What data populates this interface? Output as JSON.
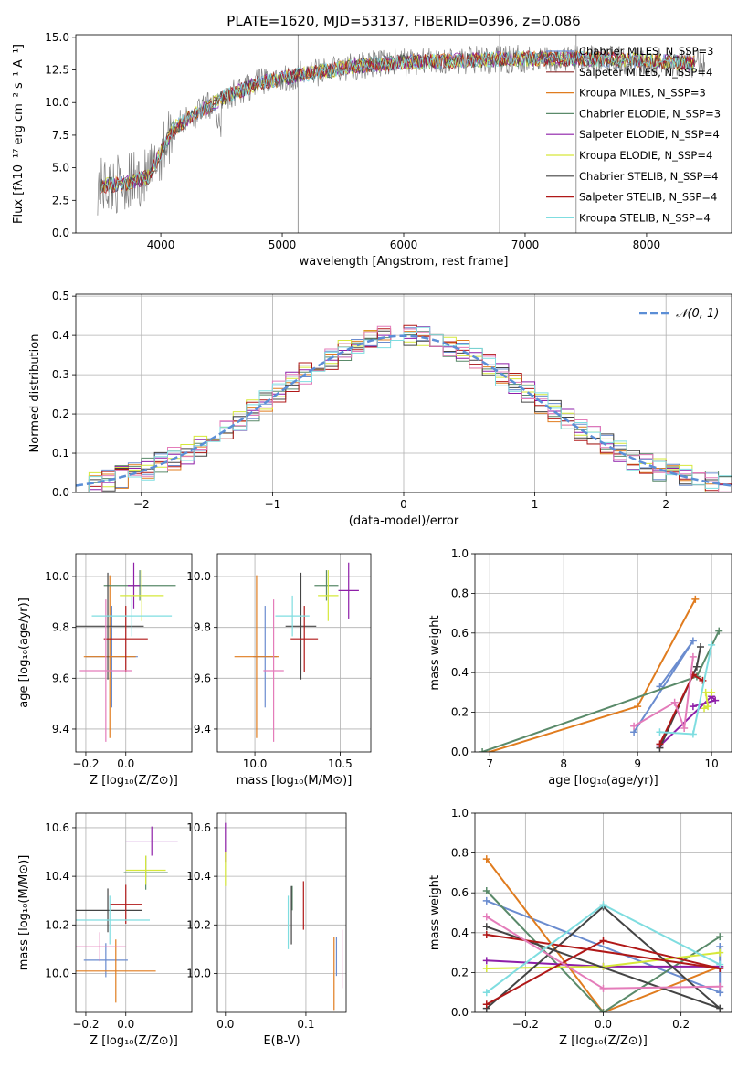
{
  "chart_data": [
    {
      "type": "line",
      "title": "PLATE=1620, MJD=53137, FIBERID=0396, z=0.086",
      "xlabel": "wavelength [Angstrom, rest frame]",
      "ylabel": "Flux [fλ10⁻¹⁷ erg cm⁻² s⁻¹ A⁻¹]",
      "xlim": [
        3300,
        8700
      ],
      "ylim": [
        0,
        15.2
      ],
      "xticks": [
        4000,
        5000,
        6000,
        7000,
        8000
      ],
      "yticks": [
        0.0,
        2.5,
        5.0,
        7.5,
        10.0,
        12.5,
        15.0
      ],
      "ytick_labels": [
        "0.0",
        "2.5",
        "5.0",
        "7.5",
        "10.0",
        "12.5",
        "15.0"
      ],
      "grid": false,
      "legend_position": "upper-right",
      "series": [
        {
          "name": "Chabrier MILES, N_SSP=3",
          "color": "#6a8ccf"
        },
        {
          "name": "Salpeter MILES, N_SSP=4",
          "color": "#8b2a2a"
        },
        {
          "name": "Kroupa MILES, N_SSP=3",
          "color": "#e07c1f"
        },
        {
          "name": "Chabrier ELODIE, N_SSP=3",
          "color": "#5a8a6a"
        },
        {
          "name": "Salpeter ELODIE, N_SSP=4",
          "color": "#8e1fa8"
        },
        {
          "name": "Kroupa ELODIE, N_SSP=4",
          "color": "#d6e83a"
        },
        {
          "name": "Chabrier STELIB, N_SSP=4",
          "color": "#444444"
        },
        {
          "name": "Salpeter STELIB, N_SSP=4",
          "color": "#b01818"
        },
        {
          "name": "Kroupa STELIB, N_SSP=4",
          "color": "#7fdde0"
        }
      ],
      "observed_color": "#808080",
      "continuum_x": [
        3500,
        3700,
        3900,
        4100,
        4300,
        4500,
        4800,
        5200,
        5600,
        6000,
        6400,
        6800,
        7200,
        7600,
        8000,
        8400
      ],
      "continuum_y": [
        3.6,
        3.8,
        4.3,
        8.0,
        9.2,
        10.3,
        11.5,
        12.2,
        12.8,
        13.1,
        13.2,
        13.3,
        13.4,
        13.3,
        13.2,
        13.0
      ],
      "spikes_x": [
        5130,
        6790,
        7420
      ]
    },
    {
      "type": "histogram",
      "xlabel": "(data-model)/error",
      "ylabel": "Normed distribution",
      "xlim": [
        -2.5,
        2.5
      ],
      "ylim": [
        0,
        0.505
      ],
      "xticks": [
        -2,
        -1,
        0,
        1,
        2
      ],
      "xtick_labels": [
        "−2",
        "−1",
        "0",
        "1",
        "2"
      ],
      "yticks": [
        0.0,
        0.1,
        0.2,
        0.3,
        0.4,
        0.5
      ],
      "ytick_labels": [
        "0.0",
        "0.1",
        "0.2",
        "0.3",
        "0.4",
        "0.5"
      ],
      "grid": true,
      "bin_width": 0.1,
      "reference": {
        "name": "𝒩(0, 1)",
        "color": "#5b8ed6"
      },
      "legend_position": "upper-right"
    },
    {
      "type": "scatter",
      "panel": "age_vs_Z",
      "xlabel": "Z [log₁₀(Z/Z⊙)]",
      "ylabel": "age  [log₁₀(age/yr)]",
      "xlim": [
        -0.25,
        0.33
      ],
      "ylim": [
        9.31,
        10.09
      ],
      "xticks": [
        -0.2,
        0.0
      ],
      "xtick_labels": [
        "−0.2",
        "0.0"
      ],
      "yticks": [
        9.4,
        9.6,
        9.8,
        10.0
      ],
      "ytick_labels": [
        "9.4",
        "9.6",
        "9.8",
        "10.0"
      ],
      "grid": true,
      "points": [
        {
          "x": -0.07,
          "y": 9.685,
          "xerr": 0.13,
          "yerr": 0.2,
          "color": "#6a8ccf"
        },
        {
          "x": -0.08,
          "y": 9.685,
          "xerr": 0.13,
          "yerr": 0.32,
          "color": "#e07c1f"
        },
        {
          "x": 0.07,
          "y": 9.965,
          "xerr": 0.18,
          "yerr": 0.06,
          "color": "#5a8a6a"
        },
        {
          "x": 0.04,
          "y": 9.965,
          "xerr": 0.03,
          "yerr": 0.09,
          "color": "#8e1fa8"
        },
        {
          "x": 0.08,
          "y": 9.925,
          "xerr": 0.11,
          "yerr": 0.1,
          "color": "#d6e83a"
        },
        {
          "x": -0.09,
          "y": 9.805,
          "xerr": 0.18,
          "yerr": 0.21,
          "color": "#444444"
        },
        {
          "x": 0.0,
          "y": 9.755,
          "xerr": 0.11,
          "yerr": 0.13,
          "color": "#b01818"
        },
        {
          "x": -0.1,
          "y": 9.63,
          "xerr": 0.13,
          "yerr": 0.28,
          "color": "#e47cba"
        },
        {
          "x": 0.03,
          "y": 9.845,
          "xerr": 0.2,
          "yerr": 0.08,
          "color": "#7fdde0"
        }
      ]
    },
    {
      "type": "scatter",
      "panel": "age_vs_mass",
      "xlabel": "mass [log₁₀(M/M⊙)]",
      "xlim": [
        9.78,
        10.68
      ],
      "ylim": [
        9.31,
        10.09
      ],
      "xticks": [
        10.0,
        10.5
      ],
      "xtick_labels": [
        "10.0",
        "10.5"
      ],
      "yticks": [
        9.4,
        9.6,
        9.8,
        10.0
      ],
      "ytick_labels": [
        "9.4",
        "9.6",
        "9.8",
        "10.0"
      ],
      "grid": true,
      "points": [
        {
          "x": 10.06,
          "y": 9.685,
          "xerr": 0.07,
          "yerr": 0.2,
          "color": "#6a8ccf"
        },
        {
          "x": 10.01,
          "y": 9.685,
          "xerr": 0.13,
          "yerr": 0.32,
          "color": "#e07c1f"
        },
        {
          "x": 10.42,
          "y": 9.965,
          "xerr": 0.07,
          "yerr": 0.06,
          "color": "#5a8a6a"
        },
        {
          "x": 10.55,
          "y": 9.945,
          "xerr": 0.06,
          "yerr": 0.11,
          "color": "#8e1fa8"
        },
        {
          "x": 10.43,
          "y": 9.925,
          "xerr": 0.06,
          "yerr": 0.1,
          "color": "#d6e83a"
        },
        {
          "x": 10.27,
          "y": 9.805,
          "xerr": 0.09,
          "yerr": 0.21,
          "color": "#444444"
        },
        {
          "x": 10.29,
          "y": 9.755,
          "xerr": 0.08,
          "yerr": 0.13,
          "color": "#b01818"
        },
        {
          "x": 10.11,
          "y": 9.63,
          "xerr": 0.06,
          "yerr": 0.28,
          "color": "#e47cba"
        },
        {
          "x": 10.22,
          "y": 9.845,
          "xerr": 0.1,
          "yerr": 0.08,
          "color": "#7fdde0"
        }
      ]
    },
    {
      "type": "line",
      "panel": "weight_vs_age",
      "xlabel": "age  [log₁₀(age/yr)]",
      "ylabel": "mass weight",
      "xlim": [
        6.8,
        10.27
      ],
      "ylim": [
        0,
        1.0
      ],
      "xticks": [
        7,
        8,
        9,
        10
      ],
      "xtick_labels": [
        "7",
        "8",
        "9",
        "10"
      ],
      "yticks": [
        0.0,
        0.2,
        0.4,
        0.6,
        0.8,
        1.0
      ],
      "ytick_labels": [
        "0.0",
        "0.2",
        "0.4",
        "0.6",
        "0.8",
        "1.0"
      ],
      "grid": true,
      "series": [
        {
          "color": "#6a8ccf",
          "x": [
            8.95,
            9.75,
            9.3
          ],
          "y": [
            0.1,
            0.56,
            0.33
          ]
        },
        {
          "color": "#e07c1f",
          "x": [
            7.0,
            9.0,
            9.78
          ],
          "y": [
            0.0,
            0.23,
            0.77
          ]
        },
        {
          "color": "#5a8a6a",
          "x": [
            6.9,
            9.8,
            10.1
          ],
          "y": [
            0.0,
            0.38,
            0.61
          ]
        },
        {
          "color": "#8e1fa8",
          "x": [
            9.75,
            10.05,
            10.0,
            9.3
          ],
          "y": [
            0.23,
            0.26,
            0.28,
            0.03
          ]
        },
        {
          "color": "#d6e83a",
          "x": [
            9.9,
            9.95,
            9.92,
            10.0
          ],
          "y": [
            0.22,
            0.23,
            0.3,
            0.3
          ]
        },
        {
          "color": "#444444",
          "x": [
            9.3,
            9.8,
            9.85
          ],
          "y": [
            0.02,
            0.43,
            0.53
          ]
        },
        {
          "color": "#b01818",
          "x": [
            9.3,
            9.75,
            9.88
          ],
          "y": [
            0.04,
            0.39,
            0.36
          ]
        },
        {
          "color": "#e47cba",
          "x": [
            8.95,
            9.5,
            9.63,
            9.75
          ],
          "y": [
            0.13,
            0.25,
            0.12,
            0.48
          ]
        },
        {
          "color": "#7fdde0",
          "x": [
            9.3,
            9.75,
            10.0
          ],
          "y": [
            0.1,
            0.09,
            0.54
          ]
        }
      ]
    },
    {
      "type": "scatter",
      "panel": "mass_vs_Z",
      "xlabel": "Z [log₁₀(Z/Z⊙)]",
      "ylabel": "mass [log₁₀(M/M⊙)]",
      "xlim": [
        -0.25,
        0.33
      ],
      "ylim": [
        9.84,
        10.66
      ],
      "xticks": [
        -0.2,
        0.0
      ],
      "xtick_labels": [
        "−0.2",
        "0.0"
      ],
      "yticks": [
        10.0,
        10.2,
        10.4,
        10.6
      ],
      "ytick_labels": [
        "10.0",
        "10.2",
        "10.4",
        "10.6"
      ],
      "grid": true,
      "points": [
        {
          "x": -0.1,
          "y": 10.055,
          "xerr": 0.11,
          "yerr": 0.07,
          "color": "#6a8ccf"
        },
        {
          "x": -0.05,
          "y": 10.01,
          "xerr": 0.2,
          "yerr": 0.13,
          "color": "#e07c1f"
        },
        {
          "x": 0.1,
          "y": 10.415,
          "xerr": 0.11,
          "yerr": 0.07,
          "color": "#5a8a6a"
        },
        {
          "x": 0.13,
          "y": 10.545,
          "xerr": 0.13,
          "yerr": 0.06,
          "color": "#8e1fa8"
        },
        {
          "x": 0.1,
          "y": 10.425,
          "xerr": 0.1,
          "yerr": 0.06,
          "color": "#d6e83a"
        },
        {
          "x": -0.09,
          "y": 10.26,
          "xerr": 0.17,
          "yerr": 0.09,
          "color": "#444444"
        },
        {
          "x": 0.0,
          "y": 10.285,
          "xerr": 0.08,
          "yerr": 0.08,
          "color": "#b01818"
        },
        {
          "x": -0.13,
          "y": 10.11,
          "xerr": 0.13,
          "yerr": 0.06,
          "color": "#e47cba"
        },
        {
          "x": -0.08,
          "y": 10.22,
          "xerr": 0.2,
          "yerr": 0.1,
          "color": "#7fdde0"
        }
      ]
    },
    {
      "type": "scatter",
      "panel": "mass_vs_ebv",
      "xlabel": "E(B-V)",
      "xlim": [
        -0.01,
        0.15
      ],
      "ylim": [
        9.84,
        10.66
      ],
      "xticks": [
        0.0,
        0.1
      ],
      "xtick_labels": [
        "0.0",
        "0.1"
      ],
      "yticks": [
        10.0,
        10.2,
        10.4,
        10.6
      ],
      "ytick_labels": [
        "10.0",
        "10.2",
        "10.4",
        "10.6"
      ],
      "grid": true,
      "points": [
        {
          "x": 0.138,
          "y": 10.07,
          "xerr": 0,
          "yerr": 0.08,
          "color": "#6a8ccf"
        },
        {
          "x": 0.135,
          "y": 10.0,
          "xerr": 0,
          "yerr": 0.15,
          "color": "#e07c1f"
        },
        {
          "x": 0.083,
          "y": 10.31,
          "xerr": 0,
          "yerr": 0.05,
          "color": "#5a8a6a"
        },
        {
          "x": 0.0,
          "y": 10.54,
          "xerr": 0,
          "yerr": 0.08,
          "color": "#8e1fa8"
        },
        {
          "x": 0.0,
          "y": 10.43,
          "xerr": 0,
          "yerr": 0.07,
          "color": "#d6e83a"
        },
        {
          "x": 0.082,
          "y": 10.24,
          "xerr": 0,
          "yerr": 0.12,
          "color": "#444444"
        },
        {
          "x": 0.097,
          "y": 10.28,
          "xerr": 0,
          "yerr": 0.1,
          "color": "#b01818"
        },
        {
          "x": 0.145,
          "y": 10.06,
          "xerr": 0,
          "yerr": 0.12,
          "color": "#e47cba"
        },
        {
          "x": 0.078,
          "y": 10.21,
          "xerr": 0,
          "yerr": 0.11,
          "color": "#7fdde0"
        }
      ]
    },
    {
      "type": "line",
      "panel": "weight_vs_Z",
      "xlabel": "Z [log₁₀(Z/Z⊙)]",
      "ylabel": "mass weight",
      "xlim": [
        -0.33,
        0.33
      ],
      "ylim": [
        0,
        1.0
      ],
      "xticks": [
        -0.2,
        0.0,
        0.2
      ],
      "xtick_labels": [
        "−0.2",
        "0.0",
        "0.2"
      ],
      "yticks": [
        0.0,
        0.2,
        0.4,
        0.6,
        0.8,
        1.0
      ],
      "ytick_labels": [
        "0.0",
        "0.2",
        "0.4",
        "0.6",
        "0.8",
        "1.0"
      ],
      "grid": true,
      "series": [
        {
          "color": "#6a8ccf",
          "x": [
            -0.3,
            0.3,
            0.3
          ],
          "y": [
            0.56,
            0.1,
            0.33
          ]
        },
        {
          "color": "#e07c1f",
          "x": [
            -0.3,
            0.0,
            0.3
          ],
          "y": [
            0.77,
            0.0,
            0.23
          ]
        },
        {
          "color": "#5a8a6a",
          "x": [
            -0.3,
            0.0,
            0.3
          ],
          "y": [
            0.61,
            0.0,
            0.38
          ]
        },
        {
          "color": "#8e1fa8",
          "x": [
            -0.3,
            0.0,
            0.3
          ],
          "y": [
            0.26,
            0.23,
            0.23
          ]
        },
        {
          "color": "#d6e83a",
          "x": [
            -0.3,
            0.0,
            0.3
          ],
          "y": [
            0.22,
            0.23,
            0.3
          ]
        },
        {
          "color": "#444444",
          "x": [
            -0.3,
            0.0,
            0.3,
            -0.3
          ],
          "y": [
            0.02,
            0.53,
            0.02,
            0.43
          ]
        },
        {
          "color": "#b01818",
          "x": [
            -0.3,
            0.0,
            0.3,
            -0.3
          ],
          "y": [
            0.04,
            0.36,
            0.22,
            0.39
          ]
        },
        {
          "color": "#e47cba",
          "x": [
            -0.3,
            0.0,
            0.3
          ],
          "y": [
            0.48,
            0.12,
            0.13
          ]
        },
        {
          "color": "#7fdde0",
          "x": [
            -0.3,
            0.0,
            0.3
          ],
          "y": [
            0.1,
            0.54,
            0.24
          ]
        }
      ]
    }
  ]
}
